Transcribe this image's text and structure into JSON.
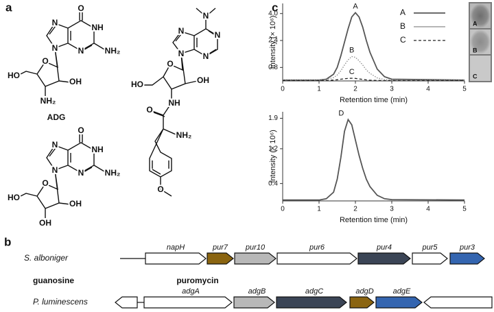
{
  "panel_labels": [
    "a",
    "b",
    "c"
  ],
  "molecules": [
    {
      "name": "ADG",
      "atoms": [
        "O",
        "NH",
        "NH₂",
        "N",
        "N",
        "N",
        "O",
        "OH",
        "NH₂",
        "HO"
      ]
    },
    {
      "name": "guanosine",
      "atoms": [
        "O",
        "NH",
        "NH₂",
        "N",
        "N",
        "N",
        "O",
        "OH",
        "OH",
        "HO"
      ]
    },
    {
      "name": "puromycin",
      "atoms": [
        "N",
        "N",
        "N",
        "N",
        "N",
        "O",
        "OH",
        "HO",
        "NH",
        "O",
        "NH₂",
        "O"
      ]
    }
  ],
  "gene_clusters": [
    {
      "organism": "S. alboniger",
      "genes": [
        "napH",
        "pur7",
        "pur10",
        "pur6",
        "pur4",
        "pur5",
        "pur3"
      ]
    },
    {
      "organism": "P. luminescens",
      "genes": [
        "adgA",
        "adgB",
        "adgC",
        "adgD",
        "adgE"
      ]
    }
  ],
  "chart_data": [
    {
      "type": "line",
      "x": [
        0,
        1.0,
        1.2,
        1.4,
        1.5,
        1.6,
        1.7,
        1.8,
        1.9,
        2.0,
        2.1,
        2.2,
        2.3,
        2.4,
        2.6,
        2.8,
        3.0,
        5
      ],
      "series": [
        {
          "name": "A",
          "color": "#555555",
          "line_style": "solid",
          "values": [
            0.05,
            0.05,
            0.1,
            0.4,
            0.8,
            1.5,
            2.3,
            3.1,
            3.8,
            4.05,
            3.8,
            3.2,
            2.4,
            1.7,
            0.7,
            0.25,
            0.1,
            0.05
          ]
        },
        {
          "name": "B",
          "color": "#8a8a8a",
          "line_style": "dotted",
          "values": [
            0.05,
            0.05,
            0.08,
            0.2,
            0.35,
            0.6,
            0.95,
            1.25,
            1.45,
            1.4,
            1.2,
            0.95,
            0.65,
            0.45,
            0.18,
            0.08,
            0.05,
            0.05
          ]
        },
        {
          "name": "C",
          "color": "#222222",
          "line_style": "dashed",
          "values": [
            0.02,
            0.02,
            0.03,
            0.05,
            0.07,
            0.1,
            0.13,
            0.15,
            0.16,
            0.15,
            0.12,
            0.09,
            0.06,
            0.04,
            0.03,
            0.02,
            0.02,
            0.02
          ]
        }
      ],
      "xlim": [
        0,
        5
      ],
      "xticks": [
        0,
        1,
        2,
        3,
        4,
        5
      ],
      "ylim": [
        0,
        4.6
      ],
      "yticks": [
        0.8,
        2.4,
        {
          "value": 4.0,
          "label": "4.0"
        }
      ],
      "xlabel": "Retention time (min)",
      "ylabel": "Intensity (× 10⁶)",
      "legend": "upper right"
    },
    {
      "type": "line",
      "x": [
        0,
        1.0,
        1.2,
        1.4,
        1.5,
        1.6,
        1.7,
        1.8,
        1.9,
        2.0,
        2.1,
        2.2,
        2.3,
        2.4,
        2.6,
        2.8,
        3.0,
        5
      ],
      "series": [
        {
          "name": "D",
          "color": "#555555",
          "line_style": "solid",
          "values": [
            0.02,
            0.02,
            0.05,
            0.2,
            0.5,
            1.0,
            1.6,
            1.87,
            1.75,
            1.4,
            1.05,
            0.75,
            0.5,
            0.33,
            0.13,
            0.05,
            0.03,
            0.02
          ]
        }
      ],
      "xlim": [
        0,
        5
      ],
      "xticks": [
        0,
        1,
        2,
        3,
        4,
        5
      ],
      "ylim": [
        0,
        2.05
      ],
      "yticks": [
        0.4,
        1.2,
        1.9
      ],
      "xlabel": "Retention time (min)",
      "ylabel": "Intensity (× 10⁶)"
    }
  ]
}
